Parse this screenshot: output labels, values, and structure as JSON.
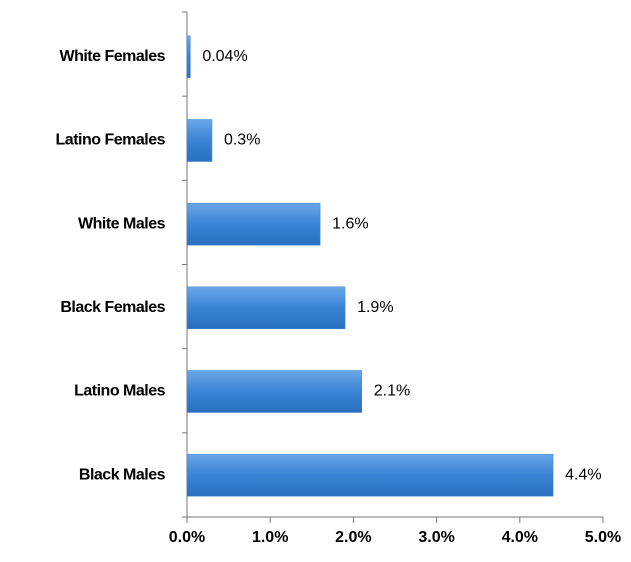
{
  "chart_data": {
    "type": "bar",
    "orientation": "horizontal",
    "categories": [
      "White Females",
      "Latino Females",
      "White Males",
      "Black Females",
      "Latino Males",
      "Black Males"
    ],
    "values": [
      0.04,
      0.3,
      1.6,
      1.9,
      2.1,
      4.4
    ],
    "value_labels": [
      "0.04%",
      "0.3%",
      "1.6%",
      "1.9%",
      "2.1%",
      "4.4%"
    ],
    "color": "#3b83d4",
    "xlim": [
      0,
      5
    ],
    "xticks": [
      {
        "value": 0,
        "label": "0.0%"
      },
      {
        "value": 1,
        "label": "1.0%"
      },
      {
        "value": 2,
        "label": "2.0%"
      },
      {
        "value": 3,
        "label": "3.0%"
      },
      {
        "value": 4,
        "label": "4.0%"
      },
      {
        "value": 5,
        "label": "5.0%"
      }
    ]
  }
}
